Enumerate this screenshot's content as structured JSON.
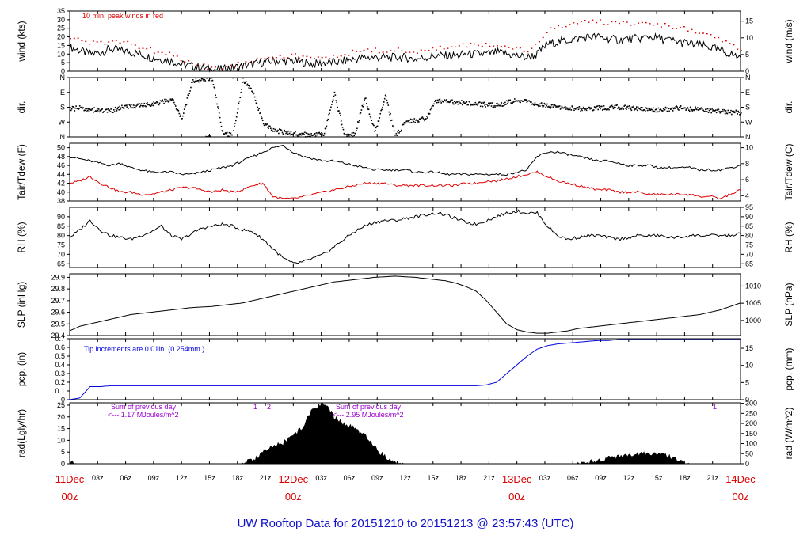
{
  "footer": {
    "title": "UW Rooftop Data for 20151210  to  20151213 @ 23:57:43  (UTC)"
  },
  "colors": {
    "axis": "#000000",
    "red": "#dd0000",
    "blue": "#0000dd",
    "purple": "#9900cc",
    "footer": "#1111cc"
  },
  "chart_data": [
    {
      "name": "wind",
      "type": "line",
      "left_label": "wind (kts)",
      "right_label": "wind (m/s)",
      "annotation": "10 min. peak winds in red",
      "ylim": [
        0,
        35
      ],
      "left_ticks": [
        0,
        5,
        10,
        15,
        20,
        25,
        30,
        35
      ],
      "right_ticks": [
        0,
        5,
        10,
        15
      ],
      "right_scale": 0.5144,
      "series": [
        {
          "name": "speed",
          "color": "#000000",
          "style": "line",
          "values": [
            14,
            12,
            10,
            11,
            13,
            12,
            11,
            10,
            8,
            7,
            6,
            4,
            3,
            2,
            1,
            1,
            2,
            3,
            4,
            5,
            6,
            6,
            6,
            5,
            4,
            5,
            5,
            6,
            7,
            8,
            8,
            8,
            8,
            8,
            7,
            8,
            9,
            9,
            9,
            10,
            10,
            10,
            11,
            10,
            9,
            8,
            10,
            16,
            17,
            18,
            19,
            20,
            20,
            19,
            18,
            19,
            19,
            20,
            19,
            18,
            17,
            16,
            15,
            14,
            12,
            10,
            8
          ]
        },
        {
          "name": "peak",
          "color": "#dd0000",
          "style": "dots",
          "values": [
            20,
            18,
            16,
            16,
            18,
            17,
            16,
            14,
            12,
            11,
            9,
            7,
            5,
            3,
            2,
            2,
            3,
            5,
            7,
            8,
            9,
            9,
            9,
            8,
            7,
            8,
            9,
            10,
            11,
            12,
            12,
            12,
            12,
            12,
            11,
            12,
            13,
            14,
            14,
            15,
            15,
            15,
            16,
            15,
            13,
            12,
            15,
            24,
            26,
            27,
            28,
            29,
            29,
            28,
            27,
            28,
            28,
            28,
            27,
            26,
            25,
            24,
            22,
            20,
            18,
            15,
            12
          ]
        }
      ]
    },
    {
      "name": "direction",
      "type": "scatter",
      "left_label": "dir.",
      "right_label": "dir.",
      "ylim": [
        0,
        360
      ],
      "tick_labels": [
        "N",
        "E",
        "S",
        "W",
        "N"
      ],
      "tick_values": [
        0,
        90,
        180,
        270,
        360
      ],
      "values": [
        190,
        185,
        195,
        200,
        205,
        180,
        175,
        170,
        160,
        150,
        130,
        250,
        20,
        10,
        5,
        340,
        350,
        15,
        90,
        280,
        320,
        330,
        340,
        345,
        350,
        340,
        100,
        350,
        345,
        120,
        330,
        110,
        355,
        270,
        260,
        250,
        140,
        145,
        150,
        155,
        160,
        165,
        170,
        150,
        140,
        145,
        160,
        175,
        180,
        185,
        190,
        190,
        185,
        185,
        180,
        185,
        190,
        195,
        195,
        190,
        185,
        190,
        195,
        200,
        205,
        210,
        215
      ]
    },
    {
      "name": "temperature",
      "type": "line",
      "left_label": "Tair/Tdew (F)",
      "right_label": "Tair/Tdew (C)",
      "ylim": [
        38,
        51
      ],
      "left_ticks": [
        38,
        40,
        42,
        44,
        46,
        48,
        50
      ],
      "right_ticks": [
        4,
        6,
        8,
        10
      ],
      "series": [
        {
          "name": "Tair",
          "color": "#000000",
          "values": [
            48,
            47.5,
            47,
            46.5,
            46,
            46.5,
            45.5,
            45,
            44.5,
            44.5,
            44.5,
            44,
            44,
            44.5,
            45,
            45.5,
            46,
            47,
            48,
            49,
            50,
            50.5,
            49,
            48,
            47.5,
            47,
            47,
            46.5,
            46,
            45.5,
            45,
            45,
            45,
            45,
            44.5,
            44.5,
            44.5,
            44,
            44,
            44,
            44,
            44,
            44,
            44,
            44.5,
            45,
            48,
            49,
            49,
            48.5,
            48,
            47.5,
            47,
            47,
            46.5,
            46,
            46,
            46,
            45.5,
            45.5,
            45.5,
            45.5,
            45,
            45,
            45,
            45.5,
            46
          ]
        },
        {
          "name": "Tdew",
          "color": "#dd0000",
          "values": [
            42,
            42.5,
            43.5,
            42,
            41,
            40,
            40,
            39.5,
            39.5,
            40,
            40.5,
            41,
            41,
            40.5,
            40,
            40.5,
            40,
            40.5,
            41.5,
            42,
            39,
            38.5,
            38.5,
            39,
            39.5,
            40,
            40.5,
            41,
            41.5,
            42,
            42,
            42,
            41.5,
            41.5,
            41.5,
            41.5,
            41.5,
            41.5,
            41.5,
            42,
            42,
            42.5,
            42.5,
            43,
            43.5,
            44,
            44.5,
            43.5,
            42.5,
            42,
            41.5,
            41,
            40.5,
            40.5,
            40,
            40,
            40,
            39.5,
            39.5,
            39.5,
            39.5,
            39.5,
            39,
            39,
            38.5,
            39.5,
            40.5
          ]
        }
      ]
    },
    {
      "name": "rh",
      "type": "line",
      "left_label": "RH (%)",
      "right_label": "RH (%)",
      "ylim": [
        63,
        95
      ],
      "left_ticks": [
        65,
        70,
        75,
        80,
        85,
        90
      ],
      "right_ticks": [
        65,
        70,
        75,
        80,
        85,
        90,
        95
      ],
      "series": [
        {
          "name": "RH",
          "color": "#000000",
          "values": [
            79,
            83,
            88,
            83,
            80,
            79,
            78,
            80,
            82,
            85,
            80,
            78,
            81,
            84,
            85,
            86,
            85,
            83,
            82,
            78,
            73,
            68,
            65,
            66,
            68,
            70,
            74,
            78,
            82,
            85,
            87,
            88,
            88,
            89,
            90,
            91,
            92,
            91,
            89,
            87,
            86,
            88,
            90,
            92,
            93,
            92,
            92,
            85,
            80,
            78,
            79,
            80,
            80,
            79,
            78,
            79,
            80,
            80,
            80,
            79,
            79,
            80,
            80,
            80,
            80,
            80,
            81
          ]
        }
      ]
    },
    {
      "name": "pressure",
      "type": "line",
      "left_label": "SLP (inHg)",
      "right_label": "SLP (hPa)",
      "ylim": [
        29.4,
        29.93
      ],
      "left_ticks": [
        29.4,
        29.5,
        29.6,
        29.7,
        29.8,
        29.9
      ],
      "right_ticks": [
        1000,
        1005,
        1010
      ],
      "series": [
        {
          "name": "SLP",
          "color": "#000000",
          "values": [
            29.44,
            29.48,
            29.5,
            29.52,
            29.54,
            29.56,
            29.58,
            29.59,
            29.6,
            29.61,
            29.62,
            29.63,
            29.64,
            29.645,
            29.65,
            29.66,
            29.67,
            29.68,
            29.7,
            29.72,
            29.74,
            29.76,
            29.78,
            29.8,
            29.82,
            29.84,
            29.86,
            29.87,
            29.88,
            29.89,
            29.9,
            29.905,
            29.91,
            29.905,
            29.9,
            29.89,
            29.88,
            29.87,
            29.85,
            29.82,
            29.78,
            29.7,
            29.6,
            29.5,
            29.45,
            29.43,
            29.42,
            29.42,
            29.43,
            29.44,
            29.46,
            29.47,
            29.48,
            29.49,
            29.5,
            29.51,
            29.52,
            29.53,
            29.54,
            29.55,
            29.56,
            29.57,
            29.58,
            29.6,
            29.62,
            29.65,
            29.68
          ]
        }
      ]
    },
    {
      "name": "precipitation",
      "type": "line",
      "left_label": "pcp. (in)",
      "right_label": "pcp. (mm)",
      "annotation": "Tip increments are 0.01in. (0.254mm.)",
      "ylim": [
        0,
        0.7
      ],
      "left_ticks": [
        0,
        0.1,
        0.2,
        0.3,
        0.4,
        0.5,
        0.6,
        0.7
      ],
      "right_ticks": [
        0,
        5,
        10,
        15
      ],
      "series": [
        {
          "name": "cumulative",
          "color": "#0000dd",
          "values": [
            0,
            0.02,
            0.15,
            0.15,
            0.16,
            0.16,
            0.16,
            0.16,
            0.16,
            0.16,
            0.16,
            0.16,
            0.16,
            0.16,
            0.16,
            0.16,
            0.16,
            0.16,
            0.16,
            0.16,
            0.16,
            0.16,
            0.16,
            0.16,
            0.16,
            0.16,
            0.16,
            0.16,
            0.16,
            0.16,
            0.16,
            0.16,
            0.16,
            0.16,
            0.16,
            0.16,
            0.16,
            0.16,
            0.16,
            0.16,
            0.16,
            0.17,
            0.2,
            0.3,
            0.4,
            0.5,
            0.58,
            0.62,
            0.64,
            0.65,
            0.66,
            0.67,
            0.68,
            0.68,
            0.69,
            0.69,
            0.69,
            0.69,
            0.69,
            0.69,
            0.69,
            0.69,
            0.69,
            0.69,
            0.69,
            0.69,
            0.69
          ]
        }
      ]
    },
    {
      "name": "radiation",
      "type": "area",
      "left_label": "rad(Lgly/hr)",
      "right_label": "rad (W/m^2)",
      "ylim": [
        0,
        26
      ],
      "left_ticks": [
        0,
        5,
        10,
        15,
        20,
        25
      ],
      "right_ticks": [
        0,
        50,
        100,
        150,
        200,
        250,
        300
      ],
      "right_scale": 11.63,
      "annotations": [
        {
          "text": "Sum of previous day",
          "color": "#9900cc"
        },
        {
          "text": "<--- 1.17 MJoules/m^2",
          "color": "#9900cc"
        },
        {
          "text": "Sum of previous day",
          "color": "#9900cc"
        },
        {
          "text": "<--- 2.95 MJoules/m^2",
          "color": "#9900cc"
        }
      ],
      "markers": [
        "1",
        "2",
        "1"
      ],
      "series": [
        {
          "name": "solar",
          "color": "#000000",
          "values": [
            0.5,
            0,
            0,
            0,
            0,
            0,
            0,
            0,
            0,
            0,
            0,
            0,
            0,
            0,
            0,
            0,
            0,
            0,
            1.5,
            5,
            7,
            9,
            12,
            16,
            24,
            26,
            20,
            17,
            15,
            12,
            7,
            3,
            0.5,
            0,
            0,
            0,
            0,
            0,
            0,
            0,
            0,
            0,
            0,
            0,
            0,
            0,
            0,
            0,
            0,
            0,
            0,
            0.5,
            1.5,
            2.5,
            3,
            3.5,
            4,
            4.5,
            4,
            3,
            1,
            0,
            0,
            0,
            0,
            0,
            0
          ]
        }
      ]
    }
  ],
  "x_axis": {
    "ticks": [
      "11Dec",
      "03z",
      "06z",
      "09z",
      "12z",
      "15z",
      "18z",
      "21z",
      "12Dec",
      "03z",
      "06z",
      "09z",
      "12z",
      "15z",
      "18z",
      "21z",
      "13Dec",
      "03z",
      "06z",
      "09z",
      "12z",
      "15z",
      "18z",
      "21z",
      "14Dec"
    ],
    "day_labels": [
      "11Dec",
      "12Dec",
      "13Dec",
      "14Dec"
    ],
    "day_sub": "00z"
  }
}
